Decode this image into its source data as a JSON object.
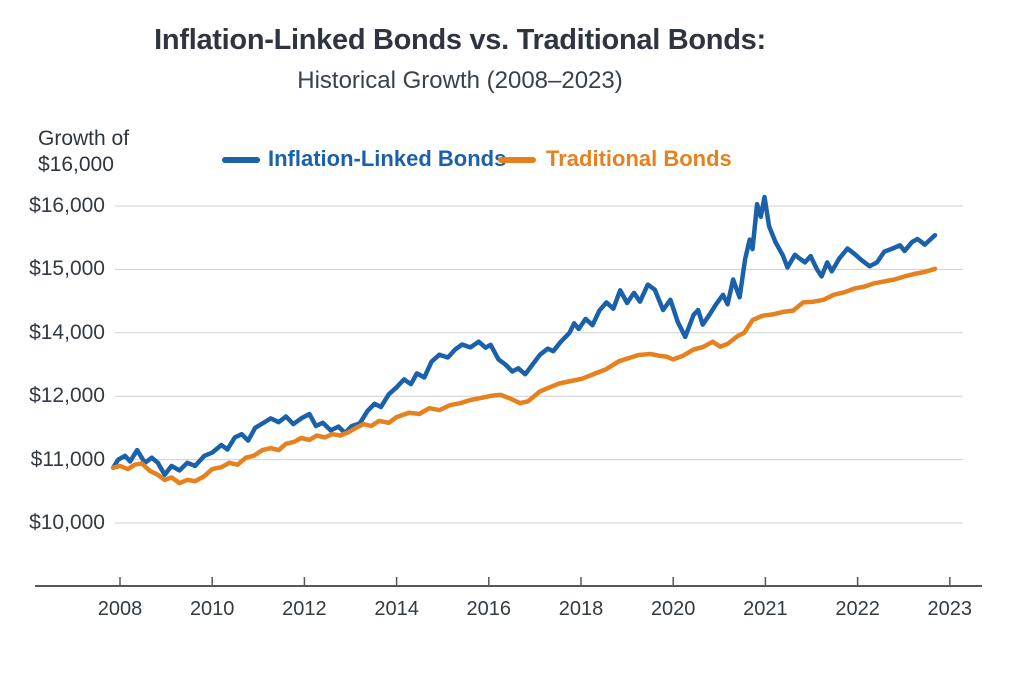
{
  "chart_data": {
    "type": "line",
    "title": "Inflation-Linked Bonds vs. Traditional Bonds:",
    "subtitle": "Historical Growth (2008–2023)",
    "ylabel": "Growth of $16,000",
    "ylabel_lines": [
      "Growth of",
      "$16,000"
    ],
    "grid": "horizontal",
    "legend_position": "top",
    "x_ticks": [
      2008,
      2010,
      2012,
      2014,
      2016,
      2018,
      2020,
      2021,
      2022,
      2023
    ],
    "y_tick_labels": [
      "$16,000",
      "$15,000",
      "$14,000",
      "$12,000",
      "$11,000",
      "$10,000"
    ],
    "y_tick_values": [
      16000,
      15000,
      14000,
      12000,
      11000,
      10000
    ],
    "axis_color": "#54585d",
    "grid_color": "#cdd0d3",
    "series": [
      {
        "name": "Inflation-Linked Bonds",
        "color": "#1a61aa",
        "points": [
          [
            2007.85,
            10870
          ],
          [
            2007.96,
            11000
          ],
          [
            2008.11,
            11060
          ],
          [
            2008.22,
            10970
          ],
          [
            2008.37,
            11150
          ],
          [
            2008.54,
            10950
          ],
          [
            2008.69,
            11030
          ],
          [
            2008.82,
            10950
          ],
          [
            2008.97,
            10760
          ],
          [
            2009.12,
            10900
          ],
          [
            2009.29,
            10830
          ],
          [
            2009.46,
            10950
          ],
          [
            2009.63,
            10900
          ],
          [
            2009.83,
            11060
          ],
          [
            2010.0,
            11110
          ],
          [
            2010.2,
            11230
          ],
          [
            2010.33,
            11160
          ],
          [
            2010.49,
            11350
          ],
          [
            2010.64,
            11400
          ],
          [
            2010.78,
            11300
          ],
          [
            2010.93,
            11500
          ],
          [
            2011.09,
            11570
          ],
          [
            2011.27,
            11650
          ],
          [
            2011.44,
            11590
          ],
          [
            2011.6,
            11680
          ],
          [
            2011.76,
            11560
          ],
          [
            2011.93,
            11650
          ],
          [
            2012.11,
            11720
          ],
          [
            2012.25,
            11530
          ],
          [
            2012.4,
            11580
          ],
          [
            2012.57,
            11460
          ],
          [
            2012.74,
            11520
          ],
          [
            2012.88,
            11420
          ],
          [
            2013.03,
            11530
          ],
          [
            2013.2,
            11570
          ],
          [
            2013.37,
            11770
          ],
          [
            2013.52,
            11880
          ],
          [
            2013.66,
            11830
          ],
          [
            2013.83,
            12060
          ],
          [
            2014.0,
            12280
          ],
          [
            2014.16,
            12530
          ],
          [
            2014.31,
            12380
          ],
          [
            2014.44,
            12720
          ],
          [
            2014.6,
            12590
          ],
          [
            2014.76,
            13090
          ],
          [
            2014.93,
            13310
          ],
          [
            2015.11,
            13220
          ],
          [
            2015.27,
            13470
          ],
          [
            2015.42,
            13630
          ],
          [
            2015.6,
            13540
          ],
          [
            2015.78,
            13720
          ],
          [
            2015.93,
            13530
          ],
          [
            2016.04,
            13620
          ],
          [
            2016.21,
            13160
          ],
          [
            2016.36,
            13000
          ],
          [
            2016.51,
            12780
          ],
          [
            2016.64,
            12880
          ],
          [
            2016.79,
            12690
          ],
          [
            2016.94,
            12980
          ],
          [
            2017.11,
            13310
          ],
          [
            2017.28,
            13500
          ],
          [
            2017.4,
            13420
          ],
          [
            2017.55,
            13700
          ],
          [
            2017.65,
            13850
          ],
          [
            2017.75,
            14000
          ],
          [
            2017.85,
            14150
          ],
          [
            2017.95,
            14060
          ],
          [
            2018.1,
            14220
          ],
          [
            2018.25,
            14120
          ],
          [
            2018.4,
            14350
          ],
          [
            2018.55,
            14480
          ],
          [
            2018.7,
            14380
          ],
          [
            2018.85,
            14670
          ],
          [
            2019.0,
            14470
          ],
          [
            2019.15,
            14630
          ],
          [
            2019.28,
            14490
          ],
          [
            2019.45,
            14760
          ],
          [
            2019.6,
            14680
          ],
          [
            2019.78,
            14360
          ],
          [
            2019.94,
            14520
          ],
          [
            2020.05,
            14170
          ],
          [
            2020.13,
            13870
          ],
          [
            2020.22,
            14280
          ],
          [
            2020.27,
            14360
          ],
          [
            2020.32,
            14130
          ],
          [
            2020.4,
            14300
          ],
          [
            2020.46,
            14440
          ],
          [
            2020.54,
            14600
          ],
          [
            2020.59,
            14450
          ],
          [
            2020.65,
            14840
          ],
          [
            2020.72,
            14560
          ],
          [
            2020.78,
            15160
          ],
          [
            2020.83,
            15470
          ],
          [
            2020.86,
            15320
          ],
          [
            2020.91,
            16030
          ],
          [
            2020.95,
            15830
          ],
          [
            2020.99,
            16140
          ],
          [
            2021.04,
            15680
          ],
          [
            2021.11,
            15430
          ],
          [
            2021.19,
            15220
          ],
          [
            2021.24,
            15030
          ],
          [
            2021.32,
            15230
          ],
          [
            2021.39,
            15150
          ],
          [
            2021.43,
            15110
          ],
          [
            2021.49,
            15210
          ],
          [
            2021.56,
            15000
          ],
          [
            2021.61,
            14890
          ],
          [
            2021.67,
            15110
          ],
          [
            2021.72,
            14970
          ],
          [
            2021.8,
            15170
          ],
          [
            2021.89,
            15330
          ],
          [
            2021.97,
            15240
          ],
          [
            2022.04,
            15150
          ],
          [
            2022.13,
            15050
          ],
          [
            2022.21,
            15110
          ],
          [
            2022.29,
            15280
          ],
          [
            2022.38,
            15330
          ],
          [
            2022.46,
            15380
          ],
          [
            2022.51,
            15290
          ],
          [
            2022.59,
            15430
          ],
          [
            2022.65,
            15480
          ],
          [
            2022.73,
            15390
          ],
          [
            2022.78,
            15460
          ],
          [
            2022.84,
            15540
          ]
        ]
      },
      {
        "name": "Traditional Bonds",
        "color": "#e5811f",
        "points": [
          [
            2007.85,
            10870
          ],
          [
            2008.0,
            10900
          ],
          [
            2008.17,
            10850
          ],
          [
            2008.32,
            10920
          ],
          [
            2008.47,
            10940
          ],
          [
            2008.65,
            10820
          ],
          [
            2008.82,
            10760
          ],
          [
            2008.97,
            10680
          ],
          [
            2009.12,
            10720
          ],
          [
            2009.29,
            10630
          ],
          [
            2009.46,
            10680
          ],
          [
            2009.63,
            10660
          ],
          [
            2009.83,
            10740
          ],
          [
            2010.0,
            10850
          ],
          [
            2010.2,
            10880
          ],
          [
            2010.37,
            10950
          ],
          [
            2010.55,
            10920
          ],
          [
            2010.73,
            11030
          ],
          [
            2010.9,
            11060
          ],
          [
            2011.09,
            11150
          ],
          [
            2011.27,
            11180
          ],
          [
            2011.44,
            11150
          ],
          [
            2011.6,
            11250
          ],
          [
            2011.78,
            11280
          ],
          [
            2011.93,
            11340
          ],
          [
            2012.11,
            11310
          ],
          [
            2012.27,
            11380
          ],
          [
            2012.44,
            11350
          ],
          [
            2012.61,
            11400
          ],
          [
            2012.78,
            11380
          ],
          [
            2012.95,
            11430
          ],
          [
            2013.12,
            11500
          ],
          [
            2013.28,
            11560
          ],
          [
            2013.45,
            11530
          ],
          [
            2013.62,
            11610
          ],
          [
            2013.83,
            11580
          ],
          [
            2014.0,
            11670
          ],
          [
            2014.27,
            11740
          ],
          [
            2014.49,
            11720
          ],
          [
            2014.71,
            11810
          ],
          [
            2014.93,
            11780
          ],
          [
            2015.16,
            11860
          ],
          [
            2015.38,
            11890
          ],
          [
            2015.6,
            11940
          ],
          [
            2015.82,
            11970
          ],
          [
            2016.04,
            12010
          ],
          [
            2016.26,
            12040
          ],
          [
            2016.47,
            11960
          ],
          [
            2016.68,
            11890
          ],
          [
            2016.85,
            11920
          ],
          [
            2017.11,
            12150
          ],
          [
            2017.32,
            12280
          ],
          [
            2017.53,
            12400
          ],
          [
            2017.79,
            12480
          ],
          [
            2018.02,
            12550
          ],
          [
            2018.28,
            12700
          ],
          [
            2018.54,
            12850
          ],
          [
            2018.82,
            13100
          ],
          [
            2019.03,
            13200
          ],
          [
            2019.25,
            13300
          ],
          [
            2019.51,
            13330
          ],
          [
            2019.68,
            13280
          ],
          [
            2019.85,
            13250
          ],
          [
            2020.0,
            13160
          ],
          [
            2020.11,
            13280
          ],
          [
            2020.22,
            13470
          ],
          [
            2020.32,
            13550
          ],
          [
            2020.43,
            13720
          ],
          [
            2020.51,
            13560
          ],
          [
            2020.59,
            13650
          ],
          [
            2020.7,
            13900
          ],
          [
            2020.77,
            14000
          ],
          [
            2020.86,
            14200
          ],
          [
            2020.97,
            14270
          ],
          [
            2021.08,
            14290
          ],
          [
            2021.19,
            14330
          ],
          [
            2021.3,
            14350
          ],
          [
            2021.41,
            14480
          ],
          [
            2021.52,
            14490
          ],
          [
            2021.63,
            14520
          ],
          [
            2021.74,
            14600
          ],
          [
            2021.86,
            14640
          ],
          [
            2021.97,
            14700
          ],
          [
            2022.08,
            14730
          ],
          [
            2022.18,
            14780
          ],
          [
            2022.29,
            14810
          ],
          [
            2022.4,
            14840
          ],
          [
            2022.51,
            14890
          ],
          [
            2022.62,
            14930
          ],
          [
            2022.73,
            14960
          ],
          [
            2022.84,
            15010
          ]
        ]
      }
    ]
  }
}
